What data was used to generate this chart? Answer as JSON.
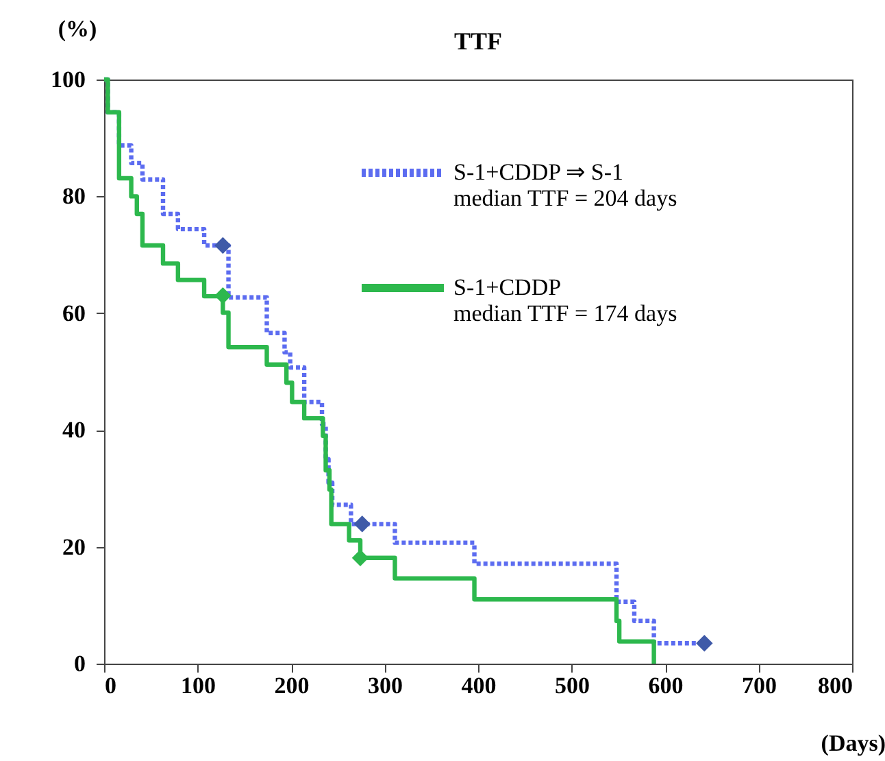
{
  "chart_data": {
    "type": "step",
    "title": "TTF",
    "xlabel": "(Days)",
    "ylabel": "(%)",
    "xlim": [
      0,
      800
    ],
    "xticks": [
      0,
      100,
      200,
      300,
      400,
      500,
      600,
      700,
      800
    ],
    "ylim": [
      0,
      100
    ],
    "yticks": [
      0,
      20,
      40,
      60,
      80,
      100
    ],
    "grid": false,
    "legend": "top right",
    "annotations": [
      "median TTF = 204 days",
      "median TTF = 174 days"
    ],
    "series": [
      {
        "name": "S-1+CDDP ⇒ S-1",
        "color": "#5c6cf0",
        "line_style": "dotted",
        "marker": "none",
        "x": [
          0,
          4,
          16,
          29,
          41,
          63,
          79,
          107,
          133,
          174,
          193,
          199,
          214,
          233,
          237,
          240,
          244,
          264,
          311,
          396,
          548,
          567,
          588,
          642
        ],
        "values": [
          100,
          94.4,
          88.7,
          85.7,
          82.9,
          77.0,
          74.4,
          71.6,
          62.7,
          56.6,
          53.3,
          50.7,
          44.8,
          41.0,
          35.0,
          31.0,
          27.2,
          23.9,
          20.7,
          17.1,
          10.6,
          7.3,
          3.5,
          3.5
        ]
      },
      {
        "name": "S-1+CDDP",
        "color": "#2db84d",
        "line_style": "solid",
        "marker": "none",
        "x": [
          0,
          4,
          16,
          29,
          35,
          41,
          63,
          79,
          107,
          127,
          133,
          174,
          195,
          201,
          214,
          234,
          237,
          241,
          243,
          262,
          274,
          311,
          396,
          548,
          551,
          588
        ],
        "values": [
          100,
          94.4,
          83.1,
          80.0,
          77.0,
          71.6,
          68.5,
          65.7,
          62.9,
          60.1,
          54.2,
          51.2,
          48.1,
          44.8,
          42.0,
          39.0,
          33.1,
          29.8,
          23.9,
          21.1,
          18.1,
          14.6,
          11.0,
          7.3,
          3.8,
          0
        ]
      },
      {
        "type": "scatter",
        "color": "#3f5aa8",
        "marker": "diamond",
        "x": [
          127,
          276,
          642
        ],
        "values": [
          71.6,
          23.9,
          3.5
        ]
      },
      {
        "type": "scatter",
        "color": "#2db84d",
        "marker": "diamond",
        "x": [
          127,
          274
        ],
        "values": [
          63,
          18.1
        ]
      }
    ]
  }
}
